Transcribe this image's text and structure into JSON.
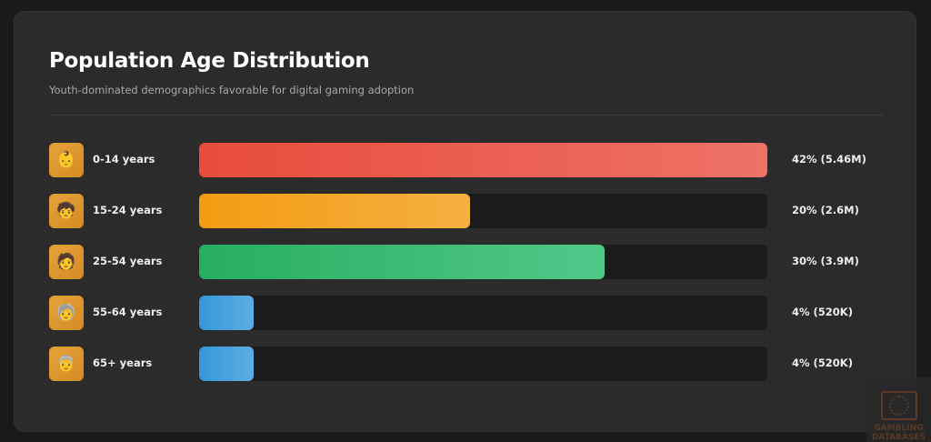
{
  "card": {
    "title": "Population Age Distribution",
    "subtitle": "Youth-dominated demographics favorable for digital gaming adoption"
  },
  "rows": [
    {
      "icon": "👶",
      "icon_name": "baby-icon",
      "label": "0-14 years",
      "value": "42% (5.46M)",
      "percent": 42,
      "color_start": "#e74c3c",
      "color_end": "#ee7266"
    },
    {
      "icon": "🧒",
      "icon_name": "child-icon",
      "label": "15-24 years",
      "value": "20% (2.6M)",
      "percent": 20,
      "color_start": "#f39c12",
      "color_end": "#f5b041"
    },
    {
      "icon": "🧑",
      "icon_name": "adult-icon",
      "label": "25-54 years",
      "value": "30% (3.9M)",
      "percent": 30,
      "color_start": "#27ae60",
      "color_end": "#52c78a"
    },
    {
      "icon": "🧓",
      "icon_name": "older-adult-icon",
      "label": "55-64 years",
      "value": "4% (520K)",
      "percent": 4,
      "color_start": "#3498db",
      "color_end": "#5dade2"
    },
    {
      "icon": "👵",
      "icon_name": "elderly-icon",
      "label": "65+ years",
      "value": "4% (520K)",
      "percent": 4,
      "color_start": "#3498db",
      "color_end": "#5dade2"
    }
  ],
  "watermark": {
    "line1": "GAMBLING",
    "line2": "DATABASES"
  },
  "chart_data": {
    "type": "bar",
    "orientation": "horizontal",
    "title": "Population Age Distribution",
    "subtitle": "Youth-dominated demographics favorable for digital gaming adoption",
    "categories": [
      "0-14 years",
      "15-24 years",
      "25-54 years",
      "55-64 years",
      "65+ years"
    ],
    "values": [
      42,
      20,
      30,
      4,
      4
    ],
    "value_labels": [
      "42% (5.46M)",
      "20% (2.6M)",
      "30% (3.9M)",
      "4% (520K)",
      "4% (520K)"
    ],
    "population": [
      5460000,
      2600000,
      3900000,
      520000,
      520000
    ],
    "unit": "%",
    "scale_max": 42,
    "colors": [
      "#e74c3c",
      "#f39c12",
      "#27ae60",
      "#3498db",
      "#3498db"
    ],
    "grid": false,
    "legend": "none"
  }
}
